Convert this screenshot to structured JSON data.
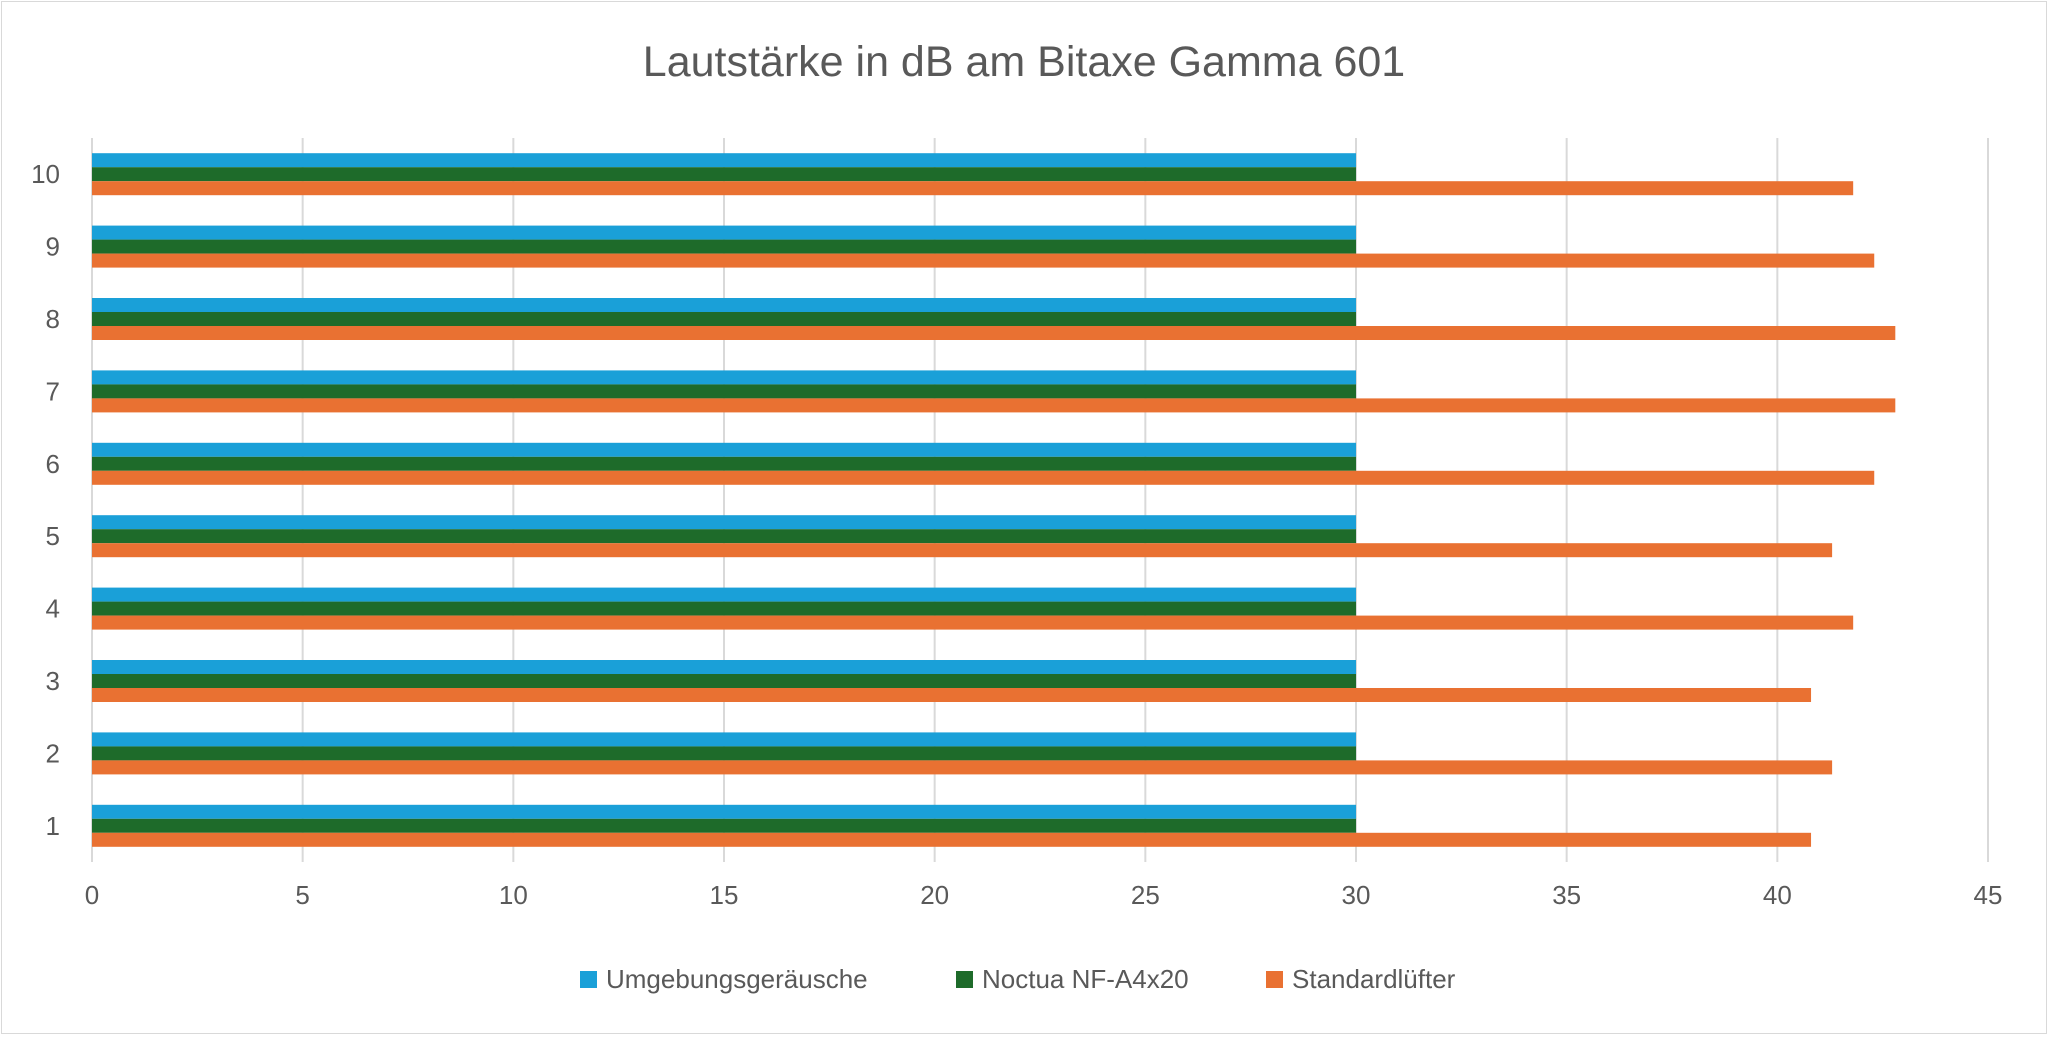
{
  "chart_data": {
    "type": "bar",
    "orientation": "horizontal",
    "title": "Lautstärke in dB am Bitaxe Gamma 601",
    "xlabel": "",
    "ylabel": "",
    "categories": [
      "1",
      "2",
      "3",
      "4",
      "5",
      "6",
      "7",
      "8",
      "9",
      "10"
    ],
    "xlim": [
      0,
      45
    ],
    "xticks": [
      0,
      5,
      10,
      15,
      20,
      25,
      30,
      35,
      40,
      45
    ],
    "grid": true,
    "legend_position": "bottom",
    "series": [
      {
        "name": "Umgebungsgeräusche",
        "color": "#1aa0d8",
        "values": [
          30,
          30,
          30,
          30,
          30,
          30,
          30,
          30,
          30,
          30
        ]
      },
      {
        "name": "Noctua NF-A4x20",
        "color": "#1e6b2a",
        "values": [
          30,
          30,
          30,
          30,
          30,
          30,
          30,
          30,
          30,
          30
        ]
      },
      {
        "name": "Standardlüfter",
        "color": "#e97132",
        "values": [
          40.8,
          41.3,
          40.8,
          41.8,
          41.3,
          42.3,
          42.8,
          42.8,
          42.3,
          41.8
        ]
      }
    ]
  }
}
